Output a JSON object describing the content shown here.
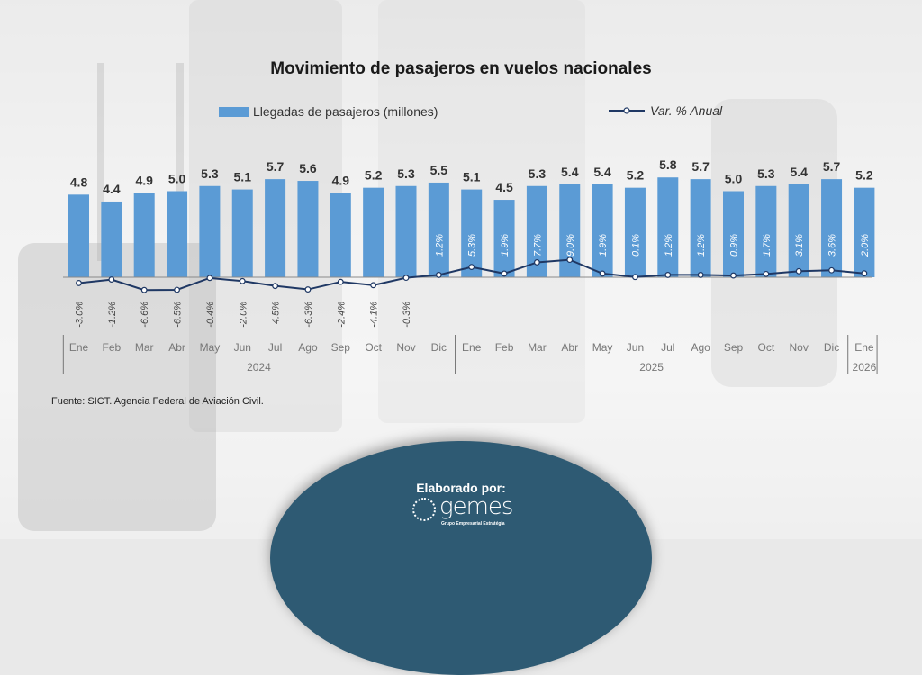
{
  "title": "Movimiento de pasajeros  en vuelos nacionales",
  "legend": {
    "bars": "Llegadas de pasajeros (millones)",
    "line": "Var. % Anual"
  },
  "source": "Fuente: SICT. Agencia Federal de Aviación Civil.",
  "footer": {
    "label": "Elaborado por:",
    "brand": "gemes",
    "brand_tagline": "Grupo Empresarial Estratégia"
  },
  "colors": {
    "bar": "#5b9bd5",
    "line": "#1f3864",
    "footer_bg": "#2e5a73"
  },
  "chart_data": {
    "type": "bar",
    "title": "Movimiento de pasajeros  en vuelos nacionales",
    "xlabel": "",
    "ylabel": "",
    "categories": [
      "Ene",
      "Feb",
      "Mar",
      "Abr",
      "May",
      "Jun",
      "Jul",
      "Ago",
      "Sep",
      "Oct",
      "Nov",
      "Dic",
      "Ene",
      "Feb",
      "Mar",
      "Abr",
      "May",
      "Jun",
      "Jul",
      "Ago",
      "Sep",
      "Oct",
      "Nov",
      "Dic",
      "Ene"
    ],
    "groups": [
      {
        "label": "2024",
        "count": 12
      },
      {
        "label": "2025",
        "count": 12
      },
      {
        "label": "2026",
        "count": 1
      }
    ],
    "series": [
      {
        "name": "Llegadas de pasajeros (millones)",
        "type": "bar",
        "values": [
          4.8,
          4.4,
          4.9,
          5.0,
          5.3,
          5.1,
          5.7,
          5.6,
          4.9,
          5.2,
          5.3,
          5.5,
          5.1,
          4.5,
          5.3,
          5.4,
          5.4,
          5.2,
          5.8,
          5.7,
          5.0,
          5.3,
          5.4,
          5.7,
          5.2
        ],
        "labels": [
          "4.8",
          "4.4",
          "4.9",
          "5.0",
          "5.3",
          "5.1",
          "5.7",
          "5.6",
          "4.9",
          "5.2",
          "5.3",
          "5.5",
          "5.1",
          "4.5",
          "5.3",
          "5.4",
          "5.4",
          "5.2",
          "5.8",
          "5.7",
          "5.0",
          "5.3",
          "5.4",
          "5.7",
          "5.2"
        ]
      },
      {
        "name": "Var. % Anual",
        "type": "line",
        "values": [
          -3.0,
          -1.2,
          -6.6,
          -6.5,
          -0.4,
          -2.0,
          -4.5,
          -6.3,
          -2.4,
          -4.1,
          -0.3,
          1.2,
          5.3,
          1.9,
          7.7,
          9.0,
          1.9,
          0.1,
          1.2,
          1.2,
          0.9,
          1.7,
          3.1,
          3.6,
          2.0
        ],
        "labels": [
          "-3.0%",
          "-1.2%",
          "-6.6%",
          "-6.5%",
          "-0.4%",
          "-2.0%",
          "-4.5%",
          "-6.3%",
          "-2.4%",
          "-4.1%",
          "-0.3%",
          "1.2%",
          "5.3%",
          "1.9%",
          "7.7%",
          "9.0%",
          "1.9%",
          "0.1%",
          "1.2%",
          "1.2%",
          "0.9%",
          "1.7%",
          "3.1%",
          "3.6%",
          "2.0%"
        ]
      }
    ],
    "ylim": [
      0,
      6
    ],
    "grid": false,
    "legend_position": "top"
  }
}
